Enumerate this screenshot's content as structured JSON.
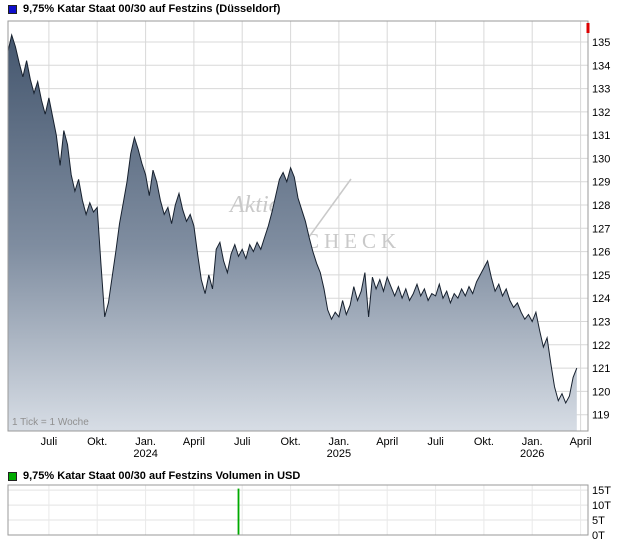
{
  "price_panel": {
    "legend_label": "9,75% Katar Staat 00/30 auf Festzins (Düsseldorf)",
    "legend_color": "#0f0fcc"
  },
  "volume_panel": {
    "legend_label": "9,75% Katar Staat 00/30 auf Festzins Volumen in USD",
    "legend_color": "#00aa00"
  },
  "watermark": {
    "line1": "Aktien",
    "line2": "CHECK"
  },
  "chart_data": [
    {
      "type": "area",
      "title": "9,75% Katar Staat 00/30 auf Festzins (Düsseldorf)",
      "note": "1 Tick = 1 Woche",
      "x_unit": "week",
      "x_domain_weeks": 157,
      "tick_weeks": [
        11,
        24,
        37,
        50,
        63,
        76,
        89,
        102,
        115,
        128,
        141,
        154
      ],
      "tick_labels": [
        {
          "month": "Juli"
        },
        {
          "month": "Okt."
        },
        {
          "month": "Jan.",
          "year": "2024"
        },
        {
          "month": "April"
        },
        {
          "month": "Juli"
        },
        {
          "month": "Okt."
        },
        {
          "month": "Jan.",
          "year": "2025"
        },
        {
          "month": "April"
        },
        {
          "month": "Juli"
        },
        {
          "month": "Okt."
        },
        {
          "month": "Jan.",
          "year": "2026"
        },
        {
          "month": "April"
        }
      ],
      "y_ticks": [
        135,
        134,
        133,
        132,
        131,
        130,
        129,
        128,
        127,
        126,
        125,
        124,
        123,
        122,
        121,
        120,
        119
      ],
      "ylim": [
        118.3,
        135.9
      ],
      "line_color": "#16202e",
      "fill_gradient": [
        "#41536b",
        "#7f8da0",
        "#d7dde5"
      ],
      "grid": true,
      "legend_position": "top-left",
      "values": [
        134.6,
        135.3,
        134.8,
        134.1,
        133.5,
        134.2,
        133.4,
        132.8,
        133.3,
        132.5,
        131.9,
        132.6,
        131.8,
        131.0,
        129.7,
        131.2,
        130.6,
        129.3,
        128.6,
        129.1,
        128.2,
        127.6,
        128.1,
        127.7,
        127.9,
        125.5,
        123.2,
        123.8,
        124.9,
        126.0,
        127.2,
        128.1,
        129.0,
        130.2,
        130.9,
        130.4,
        129.8,
        129.3,
        128.4,
        129.5,
        129.0,
        128.2,
        127.6,
        127.9,
        127.2,
        128.0,
        128.5,
        127.8,
        127.3,
        127.6,
        127.1,
        125.9,
        124.8,
        124.2,
        125.0,
        124.4,
        126.1,
        126.4,
        125.6,
        125.1,
        125.9,
        126.3,
        125.8,
        126.1,
        125.7,
        126.3,
        126.0,
        126.4,
        126.1,
        126.6,
        127.1,
        127.7,
        128.4,
        129.1,
        129.4,
        129.0,
        129.6,
        129.2,
        128.3,
        127.8,
        127.3,
        126.6,
        126.0,
        125.5,
        125.1,
        124.4,
        123.5,
        123.1,
        123.4,
        123.2,
        123.9,
        123.3,
        123.7,
        124.5,
        123.9,
        124.3,
        125.1,
        123.2,
        124.9,
        124.4,
        124.8,
        124.3,
        124.9,
        124.5,
        124.1,
        124.5,
        124.0,
        124.4,
        123.9,
        124.2,
        124.6,
        124.1,
        124.4,
        123.9,
        124.2,
        124.1,
        124.6,
        124.0,
        124.3,
        123.8,
        124.2,
        124.0,
        124.4,
        124.1,
        124.5,
        124.2,
        124.7,
        125.0,
        125.3,
        125.6,
        124.9,
        124.3,
        124.6,
        124.1,
        124.4,
        123.9,
        123.6,
        123.8,
        123.4,
        123.1,
        123.3,
        123.0,
        123.4,
        122.6,
        121.9,
        122.3,
        121.2,
        120.2,
        119.6,
        119.9,
        119.5,
        119.8,
        120.6,
        121.0
      ]
    },
    {
      "type": "bar",
      "title": "9,75% Katar Staat 00/30 auf Festzins Volumen in USD",
      "x_unit": "week",
      "x_domain_weeks": 157,
      "y_ticks": [
        {
          "label": "15T",
          "value": 15000
        },
        {
          "label": "10T",
          "value": 10000
        },
        {
          "label": "5T",
          "value": 5000
        },
        {
          "label": "0T",
          "value": 0
        }
      ],
      "ylim": [
        0,
        16700
      ],
      "bar_color": "#00aa00",
      "bars": [
        {
          "week": 62,
          "value": 15500
        }
      ]
    }
  ]
}
